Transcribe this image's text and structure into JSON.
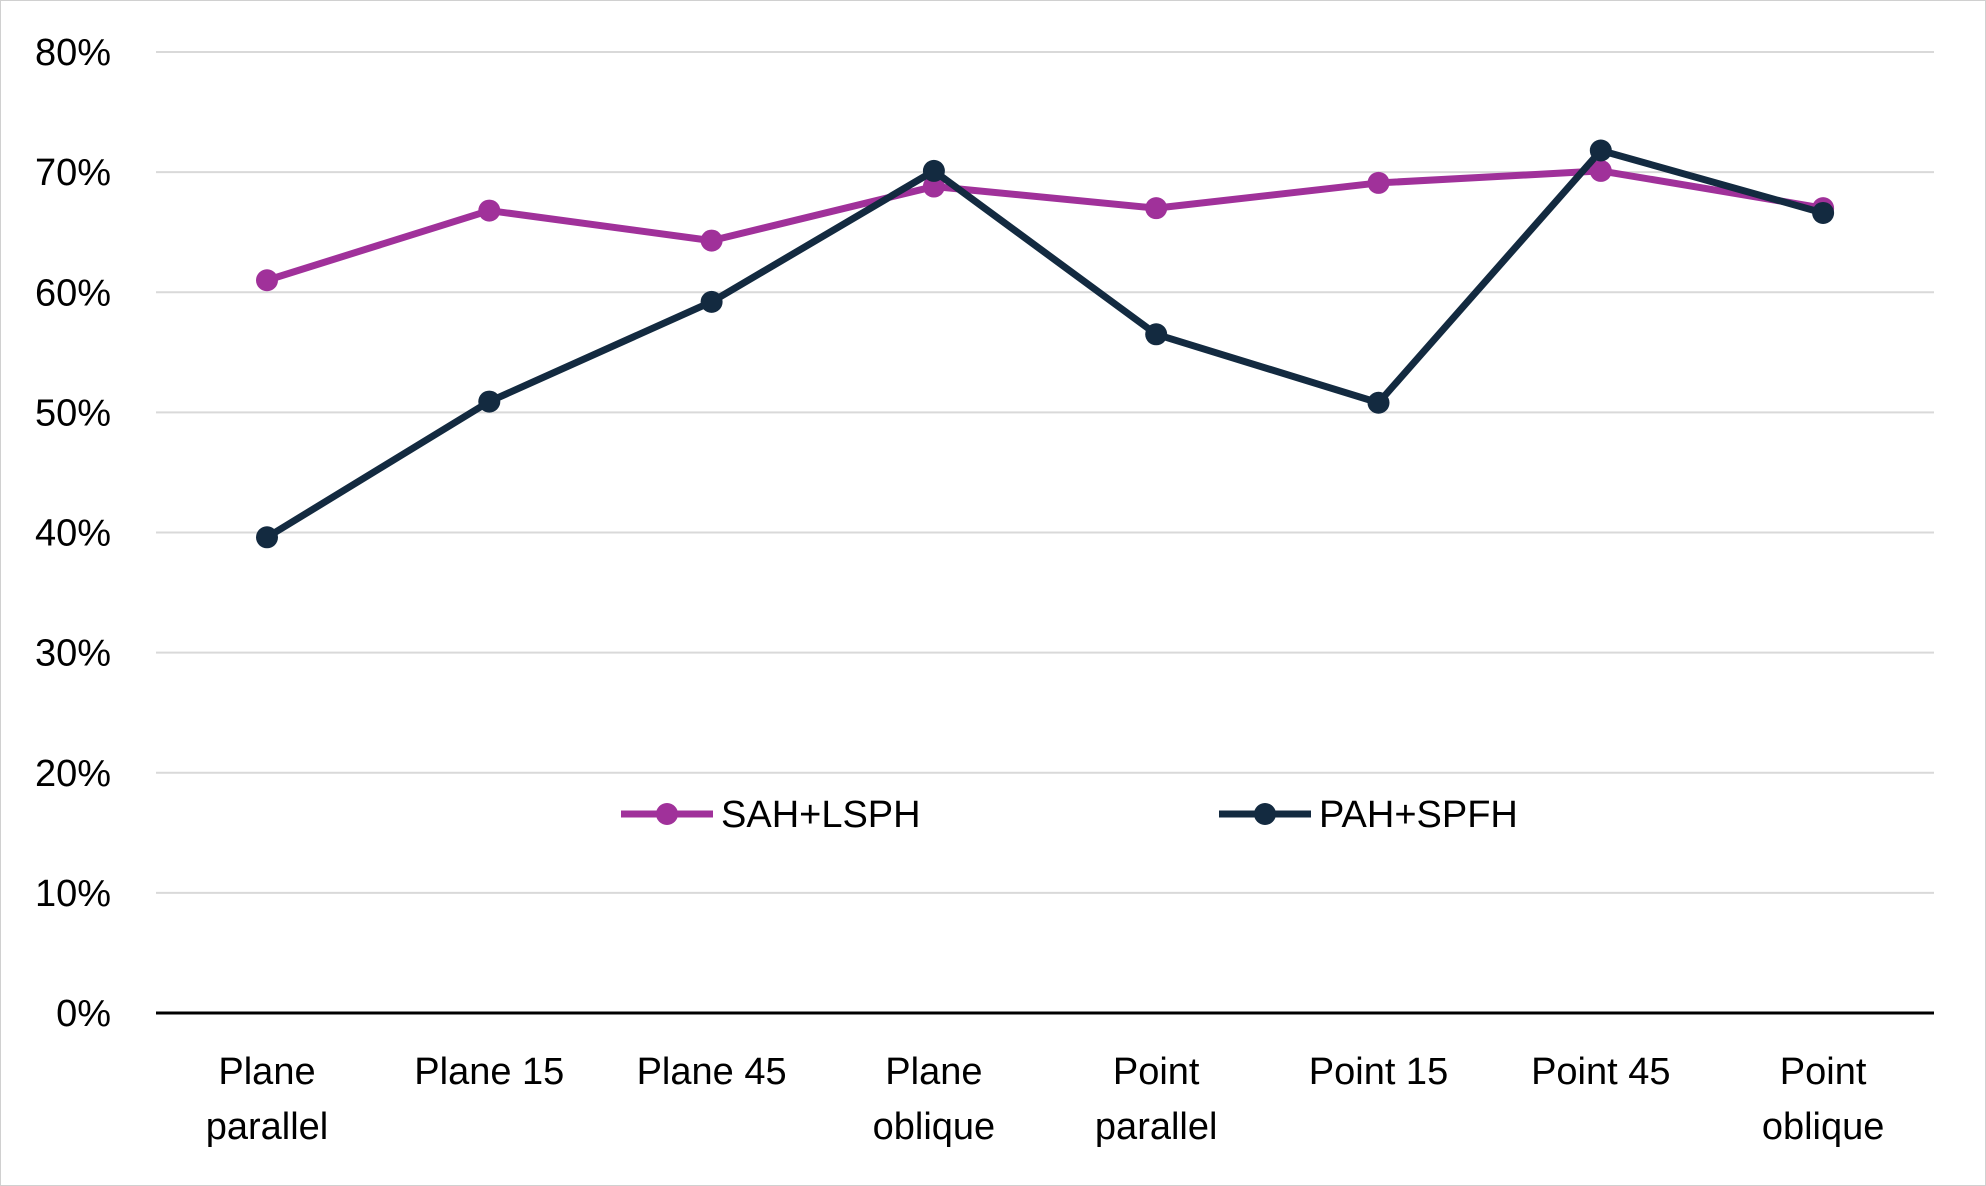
{
  "chart_data": {
    "type": "line",
    "title": "",
    "xlabel": "",
    "ylabel": "",
    "categories": [
      [
        "Plane",
        "parallel"
      ],
      [
        "Plane 15"
      ],
      [
        "Plane 45"
      ],
      [
        "Plane",
        "oblique"
      ],
      [
        "Point",
        "parallel"
      ],
      [
        "Point 15"
      ],
      [
        "Point 45"
      ],
      [
        "Point",
        "oblique"
      ]
    ],
    "y_ticks": [
      "0%",
      "10%",
      "20%",
      "30%",
      "40%",
      "50%",
      "60%",
      "70%",
      "80%"
    ],
    "ylim": [
      0,
      80
    ],
    "y_unit": "%",
    "grid": true,
    "legend_position": "inside-center",
    "series": [
      {
        "name": "SAH+LSPH",
        "color": "#A0319A",
        "values": [
          61,
          66.8,
          64.3,
          68.8,
          67,
          69.1,
          70.1,
          67
        ]
      },
      {
        "name": "PAH+SPFH",
        "color": "#132A40",
        "values": [
          39.6,
          50.9,
          59.2,
          70.1,
          56.5,
          50.8,
          71.8,
          66.6
        ]
      }
    ]
  }
}
